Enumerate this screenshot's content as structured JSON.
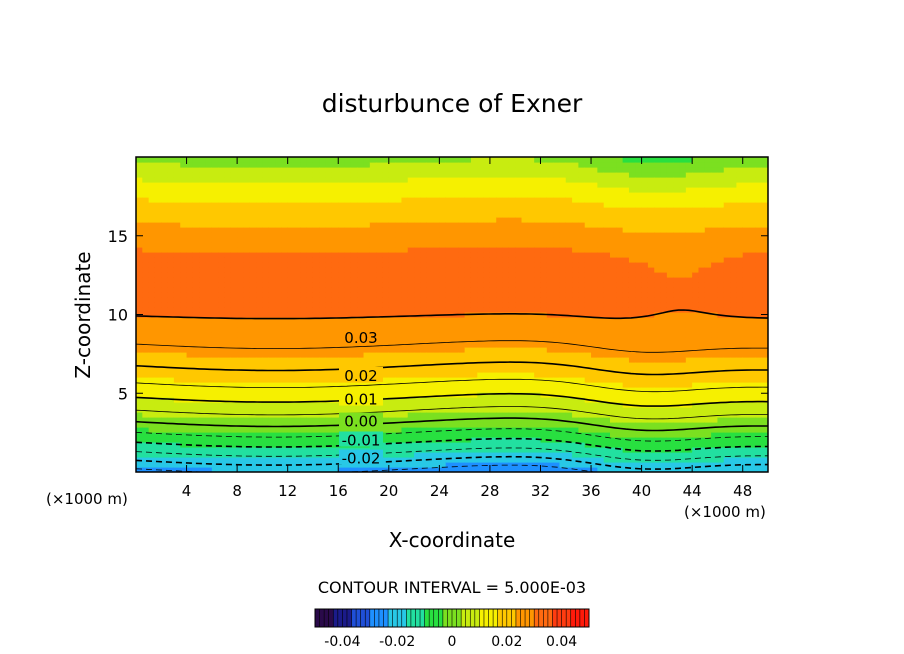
{
  "chart_data": {
    "type": "heatmap",
    "title": "disturbunce of Exner",
    "xlabel": "X-coordinate",
    "ylabel": "Z-coordinate",
    "x_unit_left": "(×1000 m)",
    "x_unit_right": "(×1000 m)",
    "xlim": [
      0,
      50
    ],
    "ylim": [
      0,
      20
    ],
    "x_ticks": [
      4,
      8,
      12,
      16,
      20,
      24,
      28,
      32,
      36,
      40,
      44,
      48
    ],
    "y_ticks": [
      5,
      10,
      15
    ],
    "x_tick_labels": [
      "4",
      "8",
      "12",
      "16",
      "20",
      "24",
      "28",
      "32",
      "36",
      "40",
      "44",
      "48"
    ],
    "y_tick_labels": [
      "5",
      "10",
      "15"
    ],
    "contour_interval_text": "CONTOUR INTERVAL = 5.000E-03",
    "contour_interval": 0.005,
    "value_range": [
      -0.05,
      0.05
    ],
    "contour_labels": [
      {
        "text": "0.03",
        "value": 0.03,
        "x": 17.8,
        "z": 8.5
      },
      {
        "text": "0.02",
        "value": 0.02,
        "x": 17.8,
        "z": 6.1
      },
      {
        "text": "0.01",
        "value": 0.01,
        "x": 17.8,
        "z": 4.6
      },
      {
        "text": "0.00",
        "value": 0.0,
        "x": 17.8,
        "z": 3.2
      },
      {
        "text": "-0.01",
        "value": -0.01,
        "x": 17.8,
        "z": 2.0
      },
      {
        "text": "-0.02",
        "value": -0.02,
        "x": 17.8,
        "z": 0.85
      }
    ],
    "colorbar": {
      "ticks": [
        -0.04,
        -0.02,
        0,
        0.02,
        0.04
      ],
      "tick_labels": [
        "-0.04",
        "-0.02",
        "0",
        "0.02",
        "0.04"
      ],
      "colors": [
        "#2a0a4a",
        "#1b1b8a",
        "#1f4fd8",
        "#1e90ff",
        "#28c8e6",
        "#22e0a0",
        "#28e040",
        "#7be020",
        "#c8ec10",
        "#f6f000",
        "#ffc800",
        "#ff9600",
        "#ff6a10",
        "#ff3c10",
        "#ff1a0a"
      ]
    }
  }
}
